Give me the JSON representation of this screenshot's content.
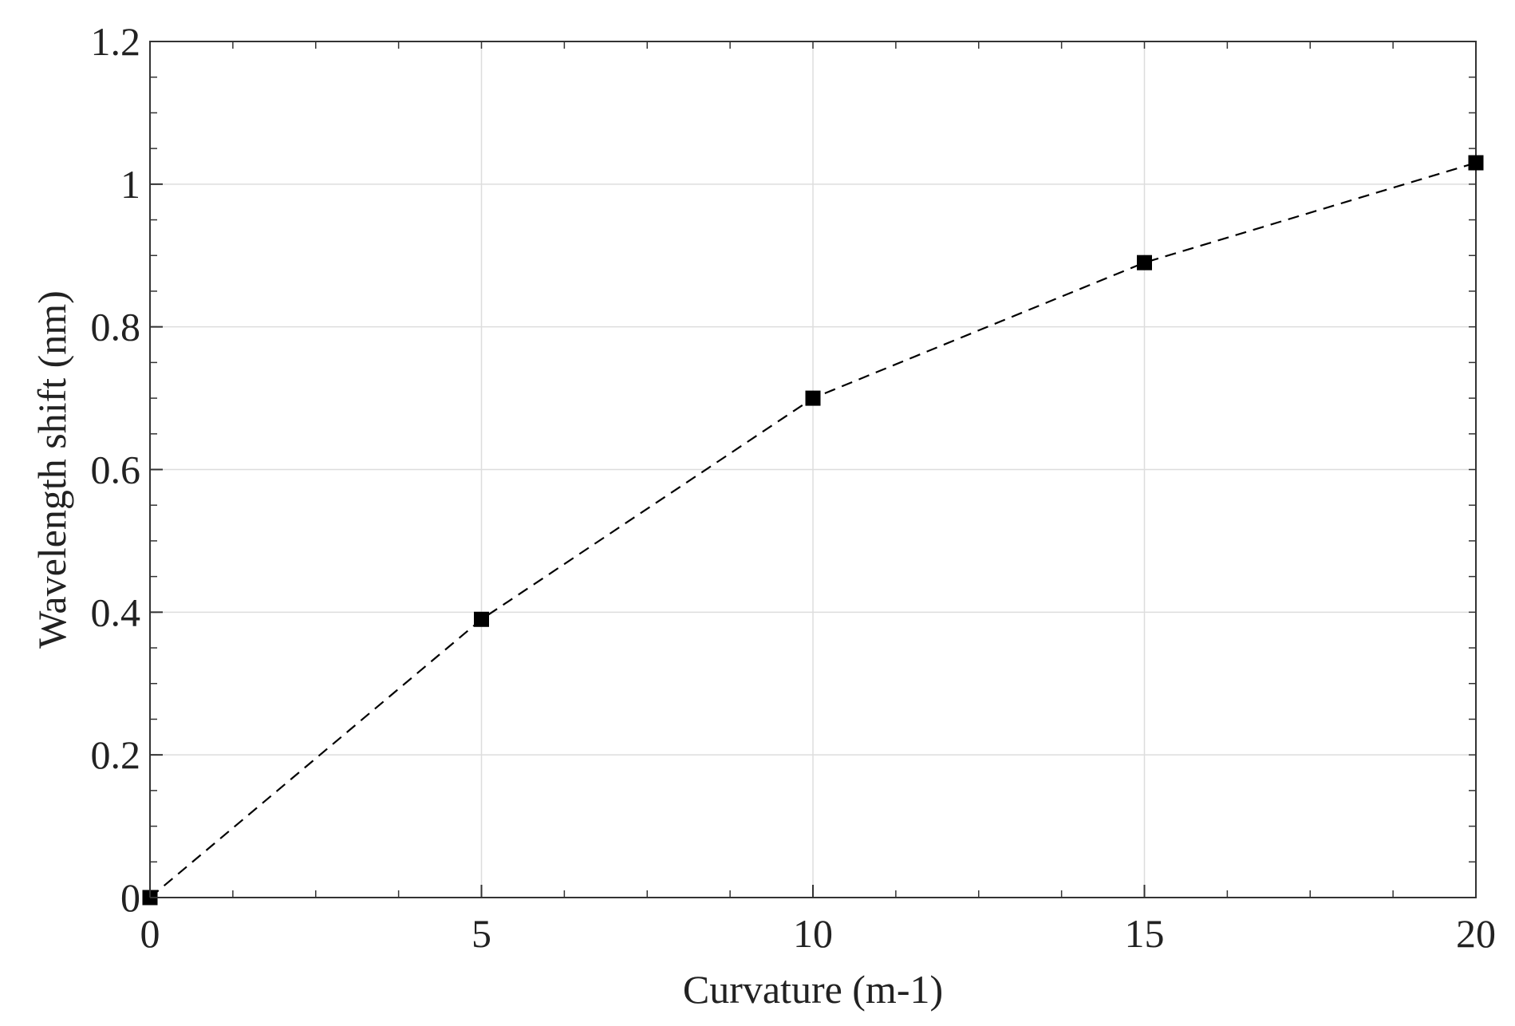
{
  "chart_data": {
    "type": "line",
    "title": "",
    "xlabel": "Curvature (m-1)",
    "ylabel": "Wavelength shift (nm)",
    "xlim": [
      0,
      20
    ],
    "ylim": [
      0,
      1.2
    ],
    "x_ticks": [
      0,
      5,
      10,
      15,
      20
    ],
    "x_tick_labels": [
      "0",
      "5",
      "10",
      "15",
      "20"
    ],
    "y_ticks": [
      0,
      0.2,
      0.4,
      0.6,
      0.8,
      1.0,
      1.2
    ],
    "y_tick_labels": [
      "0",
      "0.2",
      "0.4",
      "0.6",
      "0.8",
      "1",
      "1.2"
    ],
    "grid": true,
    "legend": "none",
    "series": [
      {
        "x": [
          0,
          5,
          10,
          15,
          20
        ],
        "y": [
          0.0,
          0.39,
          0.7,
          0.89,
          1.03
        ],
        "marker": "square",
        "line_style": "dashed",
        "color": "#000000"
      }
    ]
  }
}
